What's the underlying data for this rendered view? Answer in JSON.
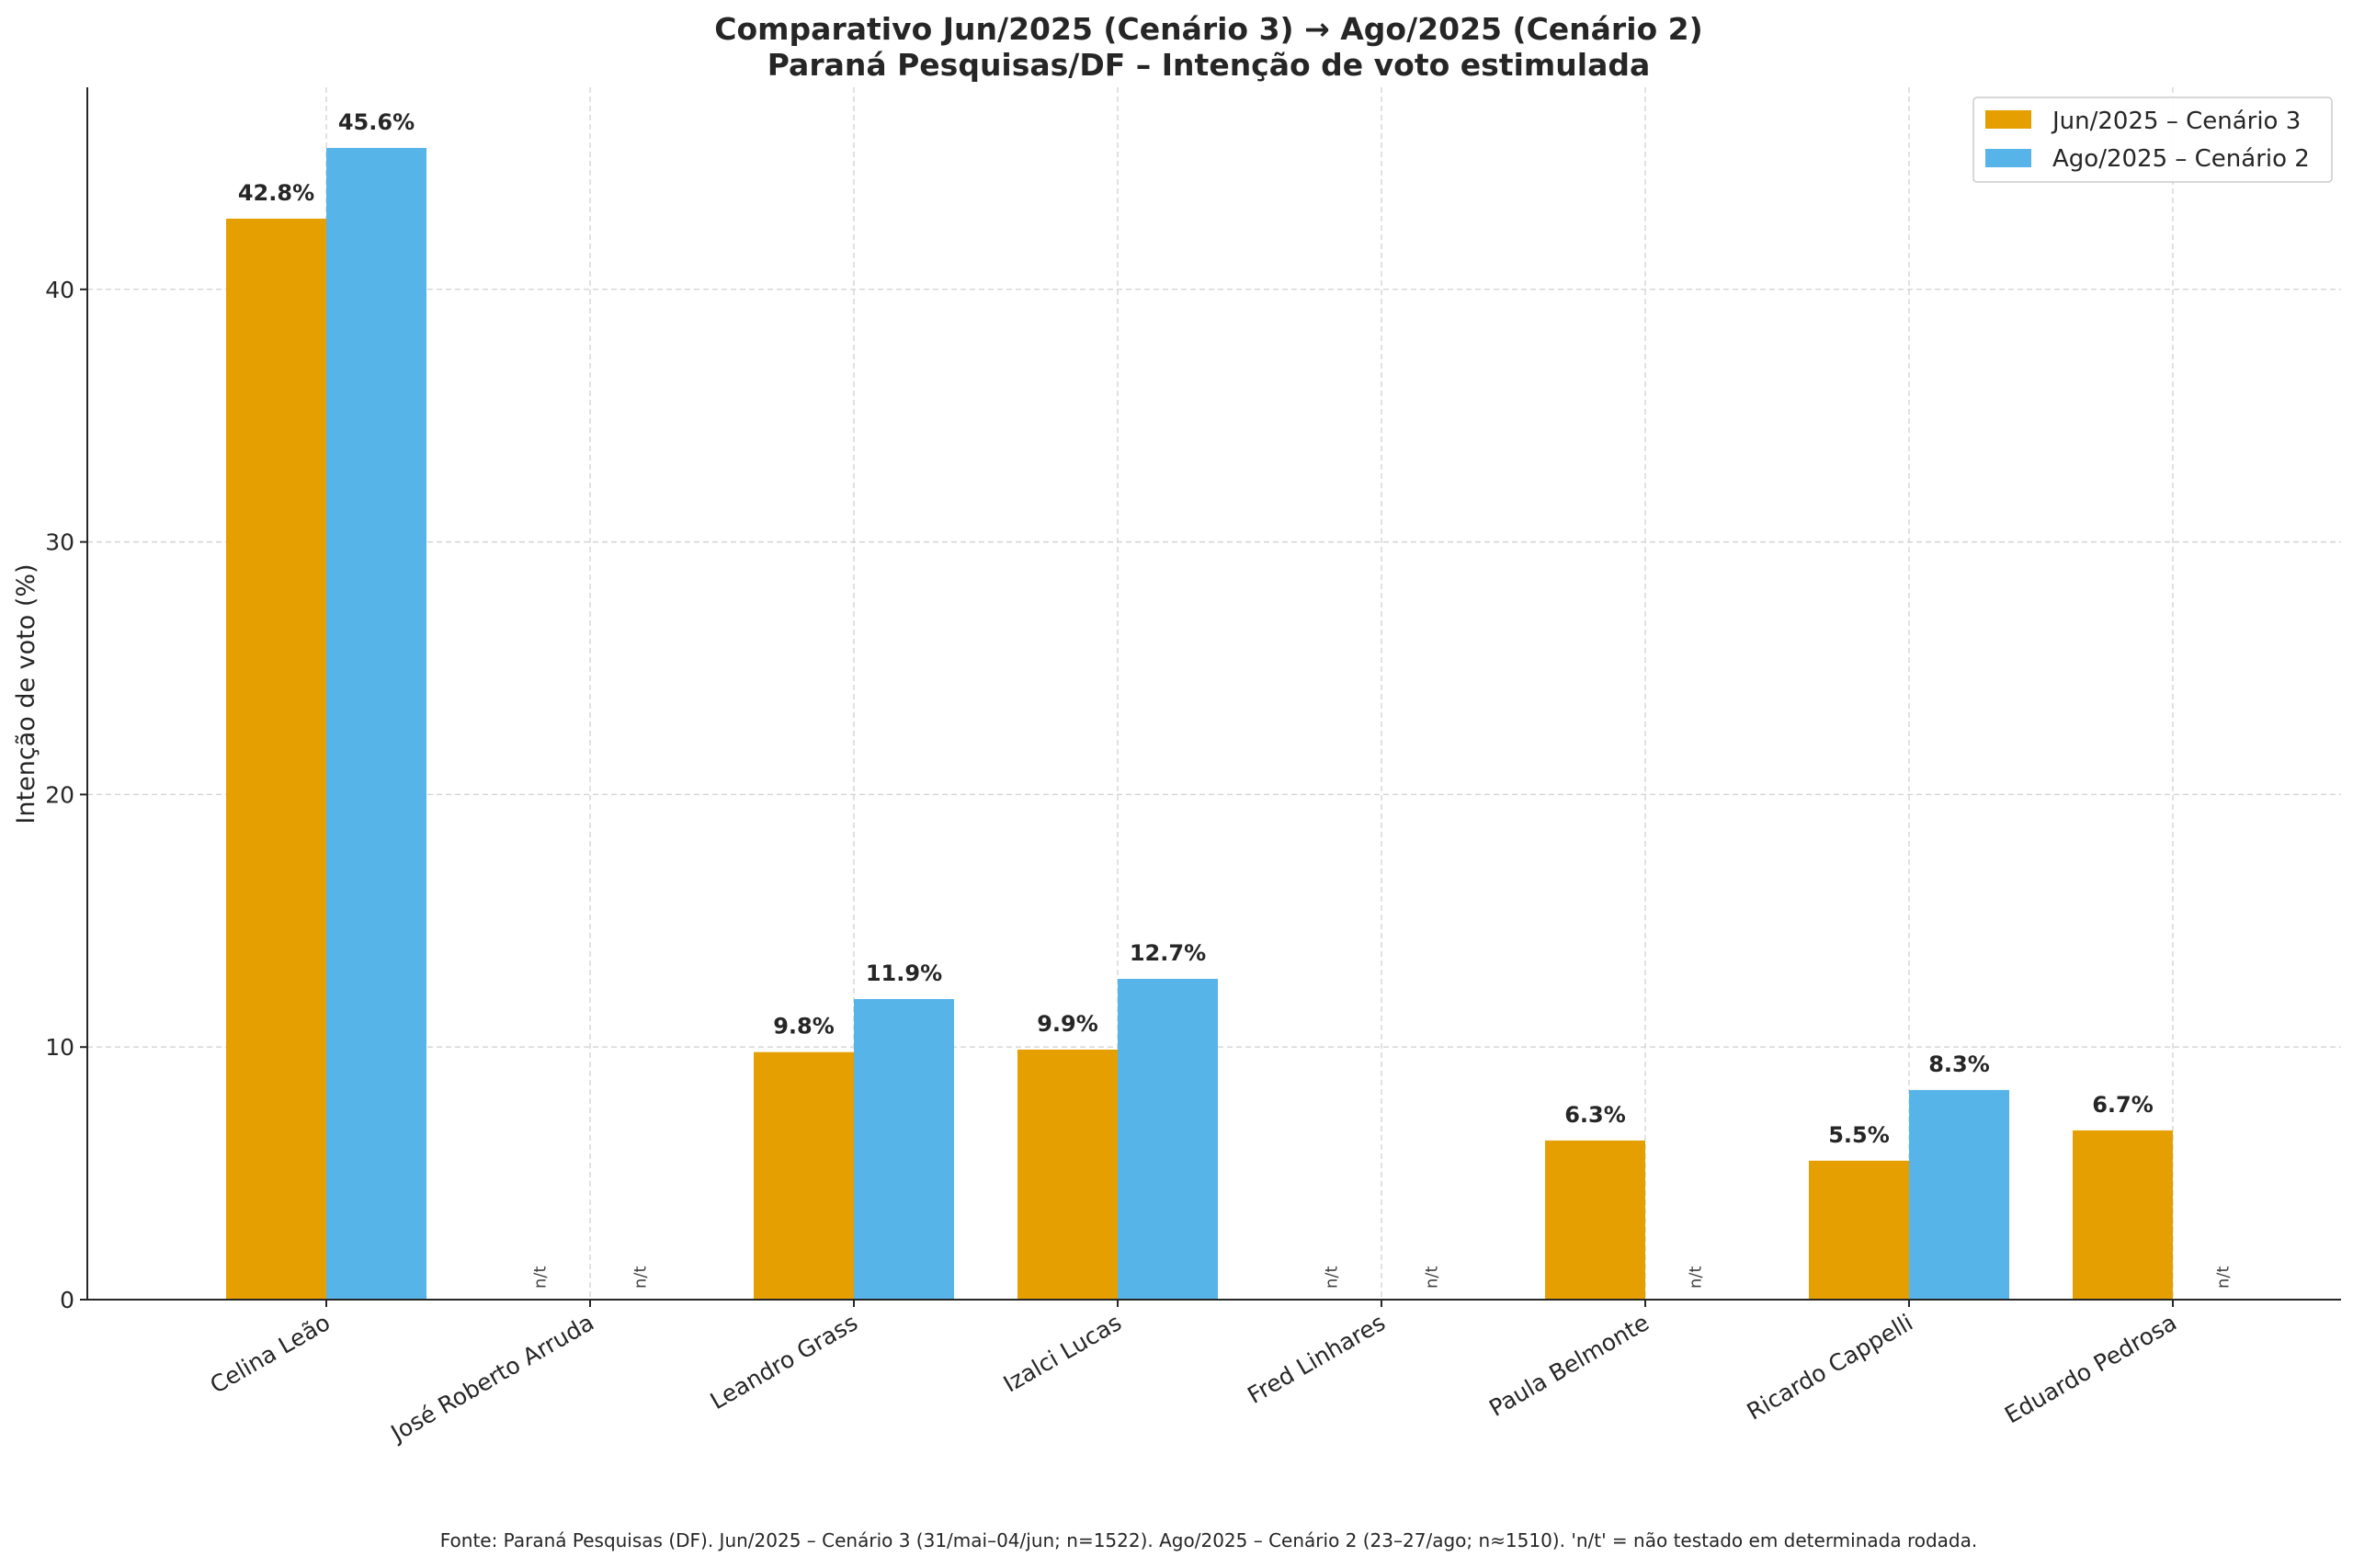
{
  "chart_data": {
    "type": "bar",
    "title": "Comparativo Jun/2025 (Cenário 3) → Ago/2025 (Cenário 2)",
    "subtitle": "Paraná Pesquisas/DF – Intenção de voto estimulada",
    "xlabel": "",
    "ylabel": "Intenção de voto (%)",
    "ylim": [
      0,
      48
    ],
    "yticks": [
      0,
      10,
      20,
      30,
      40
    ],
    "grid": true,
    "legend_position": "top-right",
    "categories": [
      "Celina Leão",
      "José Roberto Arruda",
      "Leandro Grass",
      "Izalci Lucas",
      "Fred Linhares",
      "Paula Belmonte",
      "Ricardo Cappelli",
      "Eduardo Pedrosa"
    ],
    "series": [
      {
        "name": "Jun/2025 – Cenário 3",
        "color": "#E69F00",
        "values": [
          42.8,
          null,
          9.8,
          9.9,
          null,
          6.3,
          5.5,
          6.7
        ],
        "labels": [
          "42.8%",
          "n/t",
          "9.8%",
          "9.9%",
          "n/t",
          "6.3%",
          "5.5%",
          "6.7%"
        ]
      },
      {
        "name": "Ago/2025 – Cenário 2",
        "color": "#56B4E9",
        "values": [
          45.6,
          null,
          11.9,
          12.7,
          null,
          null,
          8.3,
          null
        ],
        "labels": [
          "45.6%",
          "n/t",
          "11.9%",
          "12.7%",
          "n/t",
          "n/t",
          "8.3%",
          "n/t"
        ]
      }
    ],
    "missing_label": "n/t",
    "footnote": "Fonte: Paraná Pesquisas (DF). Jun/2025 – Cenário 3 (31/mai–04/jun; n=1522). Ago/2025 – Cenário 2 (23–27/ago; n≈1510). 'n/t' = não testado em determinada rodada."
  }
}
